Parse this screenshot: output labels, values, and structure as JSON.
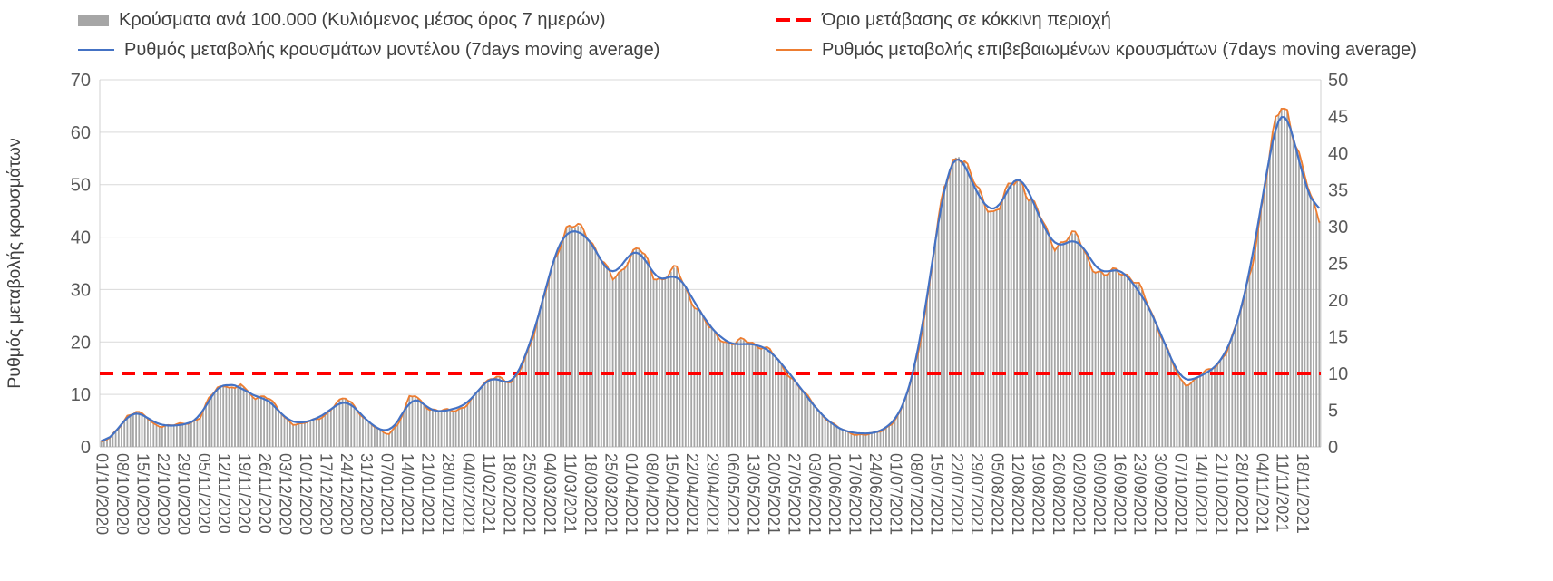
{
  "chart_data": {
    "type": "combo",
    "title": "",
    "grid": true,
    "legend_position": "top",
    "n_days": 420,
    "x_tick_interval_days": 7,
    "y_left": {
      "label": "Ρυθμός μεταβολής κρουσμάτων",
      "min": 0,
      "max": 70,
      "ticks": [
        0,
        10,
        20,
        30,
        40,
        50,
        60,
        70
      ]
    },
    "y_right": {
      "label": "",
      "min": 0,
      "max": 50,
      "ticks": [
        0,
        5,
        10,
        15,
        20,
        25,
        30,
        35,
        40,
        45,
        50
      ]
    },
    "threshold": {
      "label": "Όριο μετάβασης σε κόκκινη περιοχή",
      "value_left_axis": 14,
      "value_right_axis": 10,
      "color": "#ff0000",
      "style": "dashed"
    },
    "x_tick_labels": [
      "01/10/2020",
      "08/10/2020",
      "15/10/2020",
      "22/10/2020",
      "29/10/2020",
      "05/11/2020",
      "12/11/2020",
      "19/11/2020",
      "26/11/2020",
      "03/12/2020",
      "10/12/2020",
      "17/12/2020",
      "24/12/2020",
      "31/12/2020",
      "07/01/2021",
      "14/01/2021",
      "21/01/2021",
      "28/01/2021",
      "04/02/2021",
      "11/02/2021",
      "18/02/2021",
      "25/02/2021",
      "04/03/2021",
      "11/03/2021",
      "18/03/2021",
      "25/03/2021",
      "01/04/2021",
      "08/04/2021",
      "15/04/2021",
      "22/04/2021",
      "29/04/2021",
      "06/05/2021",
      "13/05/2021",
      "20/05/2021",
      "27/05/2021",
      "03/06/2021",
      "10/06/2021",
      "17/06/2021",
      "24/06/2021",
      "01/07/2021",
      "08/07/2021",
      "15/07/2021",
      "22/07/2021",
      "29/07/2021",
      "05/08/2021",
      "12/08/2021",
      "19/08/2021",
      "26/08/2021",
      "02/09/2021",
      "09/09/2021",
      "16/09/2021",
      "23/09/2021",
      "30/09/2021",
      "07/10/2021",
      "14/10/2021",
      "21/10/2021",
      "28/10/2021",
      "04/11/2021",
      "11/11/2021",
      "18/11/2021"
    ],
    "keypoint_days": [
      0,
      3,
      6,
      9,
      12,
      15,
      18,
      21,
      25,
      28,
      31,
      34,
      37,
      40,
      43,
      46,
      48,
      50,
      53,
      56,
      58,
      61,
      63,
      66,
      69,
      72,
      75,
      78,
      81,
      84,
      86,
      89,
      91,
      94,
      97,
      99,
      102,
      104,
      106,
      108,
      110,
      113,
      116,
      119,
      122,
      125,
      128,
      131,
      134,
      136,
      139,
      141,
      143,
      146,
      149,
      152,
      155,
      158,
      160,
      163,
      166,
      168,
      171,
      174,
      176,
      179,
      181,
      183,
      185,
      188,
      190,
      193,
      196,
      198,
      200,
      203,
      206,
      209,
      212,
      215,
      218,
      221,
      224,
      227,
      230,
      233,
      236,
      239,
      242,
      245,
      248,
      251,
      254,
      257,
      260,
      263,
      266,
      269,
      272,
      275,
      278,
      281,
      284,
      287,
      290,
      293,
      295,
      297,
      299,
      301,
      304,
      307,
      309,
      311,
      313,
      315,
      317,
      319,
      322,
      325,
      328,
      331,
      334,
      336,
      338,
      341,
      343,
      345,
      347,
      349,
      351,
      353,
      355,
      357,
      360,
      363,
      366,
      369,
      371,
      373,
      375,
      378,
      381,
      384,
      387,
      390,
      393,
      396,
      399,
      402,
      404,
      406,
      408,
      410,
      413,
      416,
      419
    ],
    "series": [
      {
        "name": "Κρούσματα ανά 100.000 (Κυλιόμενος μέσος όρος 7 ημερών)",
        "type": "bar",
        "axis": "right",
        "color": "#a6a6a6",
        "values": [
          0.6,
          1.1,
          2.5,
          4.3,
          4.9,
          4.3,
          3.3,
          2.9,
          2.9,
          3.0,
          3.3,
          3.9,
          6.4,
          8.2,
          8.8,
          8.0,
          8.6,
          7.5,
          6.6,
          6.9,
          6.3,
          4.9,
          4.0,
          3.3,
          3.2,
          3.6,
          4.0,
          4.7,
          5.9,
          6.4,
          5.9,
          4.6,
          3.7,
          2.7,
          2.1,
          2.0,
          3.2,
          4.6,
          6.6,
          6.9,
          6.1,
          5.0,
          4.7,
          5.0,
          5.2,
          5.6,
          6.7,
          8.4,
          9.4,
          9.6,
          8.6,
          8.4,
          9.6,
          12.5,
          15.7,
          20.0,
          25.0,
          28.2,
          29.5,
          29.4,
          29.1,
          28.2,
          26.1,
          23.9,
          23.1,
          24.6,
          26.1,
          26.8,
          27.0,
          25.0,
          23.2,
          22.5,
          23.2,
          23.9,
          22.5,
          20.4,
          18.6,
          16.4,
          15.4,
          14.3,
          13.8,
          14.1,
          14.0,
          13.7,
          13.2,
          11.8,
          10.4,
          8.9,
          7.1,
          5.7,
          4.3,
          3.2,
          2.4,
          2.0,
          1.9,
          1.8,
          1.9,
          2.3,
          3.2,
          4.6,
          7.9,
          12.9,
          20.0,
          28.6,
          35.7,
          39.6,
          40.4,
          38.6,
          36.4,
          34.6,
          32.9,
          31.8,
          32.5,
          34.3,
          36.1,
          37.1,
          36.8,
          34.6,
          32.1,
          29.3,
          27.1,
          27.5,
          28.2,
          28.4,
          27.1,
          25.0,
          24.0,
          23.4,
          23.9,
          24.4,
          24.1,
          23.2,
          22.1,
          21.3,
          19.3,
          16.8,
          13.9,
          11.1,
          9.4,
          8.9,
          9.0,
          9.7,
          10.1,
          11.1,
          12.9,
          15.7,
          20.0,
          25.7,
          32.9,
          40.0,
          44.3,
          46.6,
          45.7,
          42.1,
          37.1,
          33.6,
          31.4
        ]
      },
      {
        "name": "Ρυθμός μεταβολής κρουσμάτων μοντέλου (7days moving average)",
        "type": "line",
        "axis": "left",
        "color": "#4472c4",
        "values": [
          0.8,
          1.5,
          3.5,
          6.0,
          6.8,
          6.0,
          4.6,
          4.1,
          4.0,
          4.2,
          4.6,
          5.5,
          9.0,
          11.5,
          12.3,
          11.2,
          12.0,
          10.5,
          9.3,
          9.6,
          8.8,
          6.8,
          5.6,
          4.6,
          4.5,
          5.0,
          5.6,
          6.6,
          8.2,
          8.9,
          8.3,
          6.4,
          5.2,
          3.8,
          2.9,
          2.8,
          4.5,
          6.5,
          9.3,
          9.6,
          8.6,
          7.0,
          6.6,
          7.0,
          7.3,
          7.9,
          9.4,
          11.8,
          13.2,
          13.4,
          12.0,
          11.7,
          13.5,
          17.5,
          22.0,
          28.0,
          35.0,
          39.5,
          41.3,
          41.2,
          40.8,
          39.5,
          36.5,
          33.5,
          32.3,
          34.5,
          36.5,
          37.5,
          37.8,
          35.0,
          32.5,
          31.5,
          32.5,
          33.5,
          31.5,
          28.5,
          26.0,
          23.0,
          21.5,
          20.0,
          19.3,
          19.8,
          19.6,
          19.2,
          18.5,
          16.5,
          14.5,
          12.5,
          10.0,
          8.0,
          6.0,
          4.5,
          3.4,
          2.8,
          2.6,
          2.5,
          2.6,
          3.2,
          4.5,
          6.5,
          11.0,
          18.0,
          28.0,
          40.0,
          50.0,
          55.5,
          56.5,
          54.0,
          51.0,
          48.5,
          46.0,
          44.5,
          45.5,
          48.0,
          50.5,
          52.0,
          51.5,
          48.5,
          45.0,
          41.0,
          38.0,
          38.5,
          39.5,
          39.8,
          38.0,
          35.0,
          33.6,
          32.8,
          33.5,
          34.2,
          33.8,
          32.5,
          31.0,
          29.8,
          27.0,
          23.5,
          19.5,
          15.5,
          13.2,
          12.4,
          12.6,
          13.6,
          14.2,
          15.5,
          18.0,
          22.0,
          28.0,
          36.0,
          46.0,
          56.0,
          62.0,
          65.3,
          64.0,
          59.0,
          52.0,
          47.0,
          44.0
        ]
      },
      {
        "name": "Ρυθμός μεταβολής επιβεβαιωμένων κρουσμάτων (7days moving average)",
        "type": "line",
        "axis": "left",
        "color": "#ed7d31",
        "values": [
          0.8,
          1.5,
          3.5,
          6.0,
          6.8,
          6.0,
          4.6,
          4.1,
          4.0,
          4.2,
          4.6,
          5.5,
          9.0,
          11.5,
          12.3,
          11.2,
          12.0,
          10.5,
          9.3,
          9.6,
          8.8,
          6.8,
          5.6,
          4.6,
          4.5,
          5.0,
          5.6,
          6.6,
          8.2,
          8.9,
          8.3,
          6.4,
          5.2,
          3.8,
          2.9,
          2.8,
          4.5,
          6.5,
          9.3,
          9.6,
          8.6,
          7.0,
          6.6,
          7.0,
          7.3,
          7.9,
          9.4,
          11.8,
          13.2,
          13.4,
          12.0,
          11.7,
          13.5,
          17.5,
          22.0,
          28.0,
          35.0,
          39.5,
          41.3,
          41.2,
          40.8,
          39.5,
          36.5,
          33.5,
          32.3,
          34.5,
          36.5,
          37.5,
          37.8,
          35.0,
          32.5,
          31.5,
          32.5,
          33.5,
          31.5,
          28.5,
          26.0,
          23.0,
          21.5,
          20.0,
          19.3,
          19.8,
          19.6,
          19.2,
          18.5,
          16.5,
          14.5,
          12.5,
          10.0,
          8.0,
          6.0,
          4.5,
          3.4,
          2.8,
          2.6,
          2.5,
          2.6,
          3.2,
          4.5,
          6.5,
          11.0,
          18.0,
          28.0,
          40.0,
          50.0,
          55.5,
          56.5,
          54.0,
          51.0,
          48.5,
          46.0,
          44.5,
          45.5,
          48.0,
          50.5,
          52.0,
          51.5,
          48.5,
          45.0,
          41.0,
          38.0,
          38.5,
          39.5,
          39.8,
          38.0,
          35.0,
          33.6,
          32.8,
          33.5,
          34.2,
          33.8,
          32.5,
          31.0,
          29.8,
          27.0,
          23.5,
          19.5,
          15.5,
          13.2,
          12.4,
          12.6,
          13.6,
          14.2,
          15.5,
          18.0,
          22.0,
          28.0,
          36.0,
          46.0,
          56.0,
          62.0,
          65.3,
          64.0,
          59.0,
          52.0,
          47.0,
          44.0
        ]
      }
    ]
  }
}
